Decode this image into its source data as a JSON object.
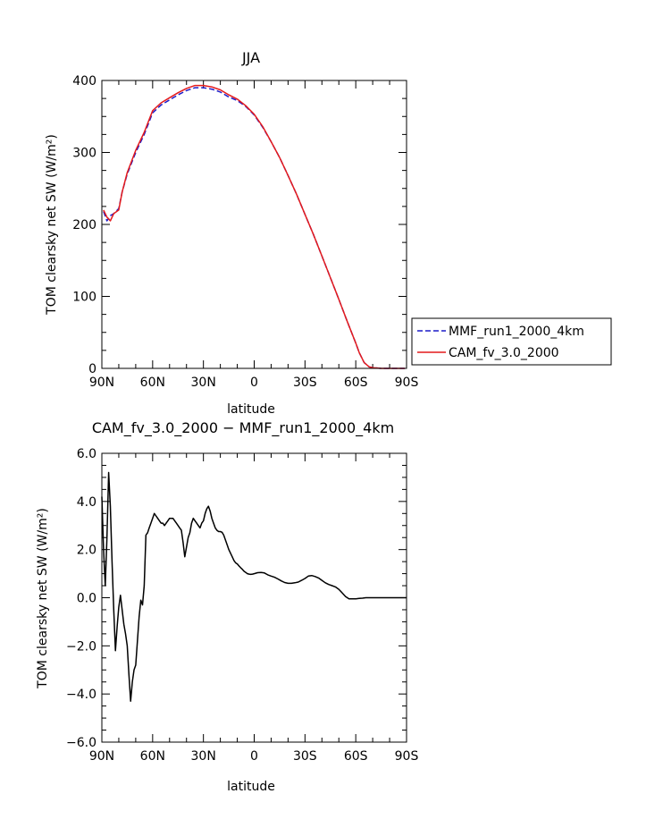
{
  "chart_data": [
    {
      "type": "line",
      "title": "JJA",
      "xlabel": "latitude",
      "ylabel": "TOM clearsky net SW (W/m²)",
      "ylim": [
        0,
        400
      ],
      "yticks": [
        0,
        100,
        200,
        300,
        400
      ],
      "xlim": [
        90,
        -90
      ],
      "xticks": [
        90,
        60,
        30,
        0,
        -30,
        -60,
        -90
      ],
      "xticklabels": [
        "90N",
        "60N",
        "30N",
        "0",
        "30S",
        "60S",
        "90S"
      ],
      "legend": "right",
      "series": [
        {
          "name": "MMF_run1_2000_4km",
          "color": "#1c1cc8",
          "dash": "dashed",
          "x": [
            89,
            87,
            85,
            83,
            80,
            78,
            75,
            70,
            65,
            60,
            55,
            50,
            45,
            40,
            35,
            30,
            25,
            20,
            15,
            10,
            5,
            0,
            -5,
            -10,
            -15,
            -20,
            -25,
            -30,
            -35,
            -40,
            -45,
            -50,
            -55,
            -60,
            -62,
            -65,
            -68,
            -70,
            -75,
            -80,
            -85,
            -89
          ],
          "y": [
            218,
            205,
            212,
            215,
            222,
            245,
            270,
            300,
            325,
            355,
            366,
            373,
            380,
            386,
            390,
            390,
            388,
            384,
            377,
            372,
            364,
            352,
            335,
            315,
            293,
            268,
            242,
            214,
            186,
            156,
            126,
            96,
            65,
            35,
            22,
            8,
            2,
            1,
            0,
            0,
            0,
            0
          ]
        },
        {
          "name": "CAM_fv_3.0_2000",
          "color": "#e41a1c",
          "dash": "solid",
          "x": [
            89,
            87,
            85,
            83,
            80,
            78,
            75,
            70,
            65,
            60,
            55,
            50,
            45,
            40,
            35,
            30,
            25,
            20,
            15,
            10,
            5,
            0,
            -5,
            -10,
            -15,
            -20,
            -25,
            -30,
            -35,
            -40,
            -45,
            -50,
            -55,
            -60,
            -62,
            -65,
            -68,
            -70,
            -75,
            -80,
            -85,
            -89
          ],
          "y": [
            220,
            210,
            205,
            215,
            220,
            245,
            272,
            303,
            328,
            358,
            369,
            376,
            383,
            389,
            393,
            393,
            391,
            387,
            380,
            374,
            365,
            353,
            336,
            315,
            293,
            268,
            242,
            214,
            186,
            156,
            126,
            96,
            65,
            35,
            22,
            8,
            2,
            1,
            0,
            0,
            0,
            0
          ]
        }
      ]
    },
    {
      "type": "line",
      "title": "CAM_fv_3.0_2000 − MMF_run1_2000_4km",
      "xlabel": "latitude",
      "ylabel": "TOM clearsky net SW (W/m²)",
      "ylim": [
        -6,
        6
      ],
      "yticks": [
        -6,
        -4,
        -2,
        0,
        2,
        4,
        6
      ],
      "yticklabels": [
        "−6.0",
        "−4.0",
        "−2.0",
        "0.0",
        "2.0",
        "4.0",
        "6.0"
      ],
      "xlim": [
        90,
        -90
      ],
      "xticks": [
        90,
        60,
        30,
        0,
        -30,
        -60,
        -90
      ],
      "xticklabels": [
        "90N",
        "60N",
        "30N",
        "0",
        "30S",
        "60S",
        "90S"
      ],
      "series": [
        {
          "color": "#000000",
          "dash": "solid",
          "x": [
            90,
            89,
            88,
            87,
            86,
            85,
            84,
            83,
            82,
            81,
            80,
            79,
            78,
            77,
            76,
            75,
            74,
            73,
            72,
            71,
            70,
            69,
            68,
            67,
            66,
            65,
            64,
            63,
            62,
            61,
            60,
            59,
            58,
            57,
            56,
            55,
            54,
            53,
            52,
            51,
            50,
            49,
            48,
            47,
            46,
            45,
            44,
            43,
            42,
            41,
            40,
            39,
            38,
            37,
            36,
            35,
            34,
            33,
            32,
            31,
            30,
            29,
            28,
            27,
            26,
            25,
            24,
            23,
            22,
            21,
            20,
            19,
            18,
            17,
            16,
            15,
            14,
            13,
            12,
            11,
            10,
            9,
            8,
            7,
            6,
            5,
            4,
            3,
            2,
            1,
            0,
            -2,
            -4,
            -6,
            -8,
            -10,
            -12,
            -14,
            -16,
            -18,
            -20,
            -22,
            -24,
            -26,
            -28,
            -30,
            -32,
            -34,
            -36,
            -38,
            -40,
            -42,
            -44,
            -46,
            -48,
            -50,
            -52,
            -54,
            -56,
            -58,
            -60,
            -62,
            -64,
            -66,
            -68,
            -70,
            -72,
            -74,
            -76,
            -78,
            -80,
            -82,
            -84,
            -86,
            -88,
            -90
          ],
          "y": [
            4.2,
            2.0,
            0.5,
            2.5,
            5.2,
            3.8,
            1.5,
            -0.5,
            -2.2,
            -1.2,
            -0.4,
            0.1,
            -0.5,
            -1.1,
            -1.5,
            -2.0,
            -3.2,
            -4.3,
            -3.5,
            -3.0,
            -2.8,
            -1.8,
            -0.8,
            -0.1,
            -0.3,
            0.5,
            2.6,
            2.7,
            2.9,
            3.1,
            3.3,
            3.5,
            3.4,
            3.3,
            3.2,
            3.1,
            3.1,
            3.0,
            3.1,
            3.2,
            3.3,
            3.3,
            3.3,
            3.2,
            3.1,
            3.0,
            2.9,
            2.8,
            2.3,
            1.7,
            2.1,
            2.5,
            2.7,
            3.1,
            3.3,
            3.2,
            3.1,
            3.0,
            2.9,
            3.1,
            3.2,
            3.5,
            3.7,
            3.8,
            3.6,
            3.3,
            3.1,
            2.9,
            2.8,
            2.75,
            2.75,
            2.72,
            2.6,
            2.4,
            2.2,
            2.0,
            1.85,
            1.7,
            1.55,
            1.45,
            1.4,
            1.32,
            1.25,
            1.18,
            1.1,
            1.05,
            1.0,
            0.98,
            0.97,
            0.98,
            1.0,
            1.04,
            1.05,
            1.03,
            0.95,
            0.9,
            0.85,
            0.78,
            0.7,
            0.63,
            0.6,
            0.6,
            0.62,
            0.65,
            0.72,
            0.8,
            0.9,
            0.92,
            0.88,
            0.82,
            0.72,
            0.62,
            0.55,
            0.5,
            0.45,
            0.35,
            0.2,
            0.05,
            -0.05,
            -0.05,
            -0.05,
            -0.03,
            -0.02,
            0.0,
            0.0,
            0.0,
            0.0,
            0.0,
            0.0,
            0.0,
            0.0,
            0.0,
            0.0,
            0.0,
            0.0,
            0.0
          ]
        }
      ]
    }
  ]
}
